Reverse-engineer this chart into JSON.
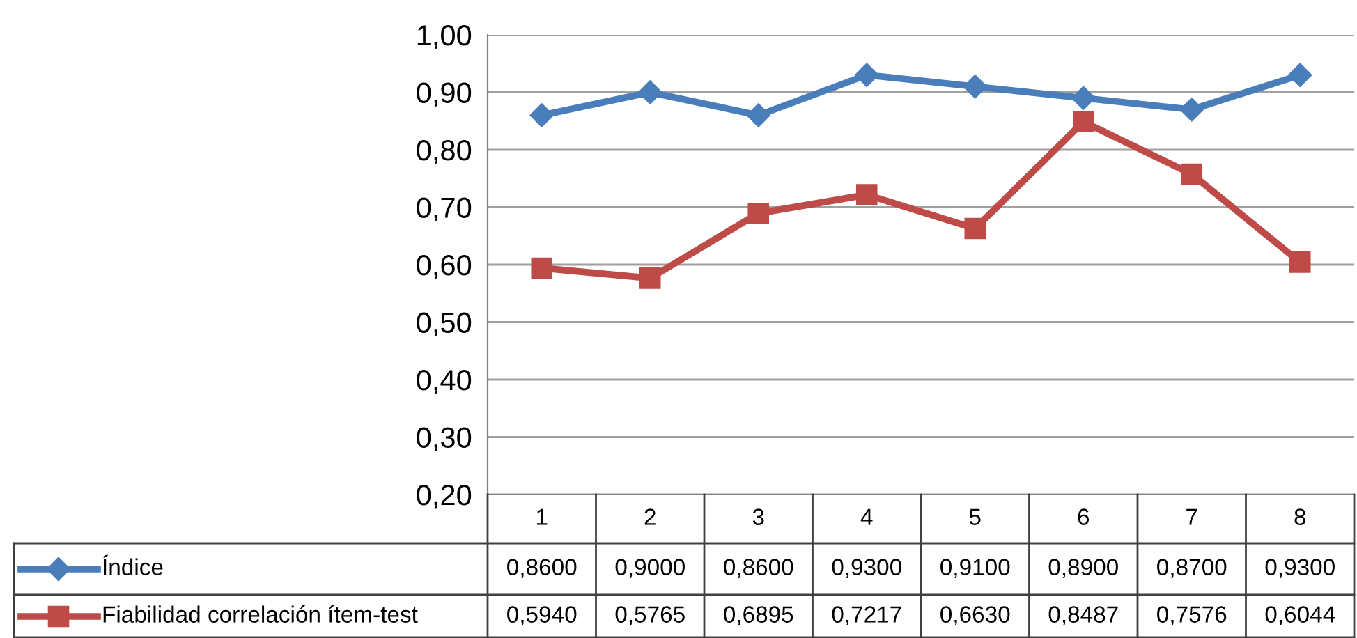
{
  "chart_data": {
    "type": "line",
    "categories": [
      "1",
      "2",
      "3",
      "4",
      "5",
      "6",
      "7",
      "8"
    ],
    "series": [
      {
        "name": "Índice",
        "color": "#4a7ebb",
        "marker": "diamond",
        "values": [
          0.86,
          0.9,
          0.86,
          0.93,
          0.91,
          0.89,
          0.87,
          0.93
        ],
        "value_labels": [
          "0,8600",
          "0,9000",
          "0,8600",
          "0,9300",
          "0,9100",
          "0,8900",
          "0,8700",
          "0,9300"
        ]
      },
      {
        "name": "Fiabilidad correlación ítem-test",
        "color": "#be4b48",
        "marker": "square",
        "values": [
          0.594,
          0.5765,
          0.6895,
          0.7217,
          0.663,
          0.8487,
          0.7576,
          0.6044
        ],
        "value_labels": [
          "0,5940",
          "0,5765",
          "0,6895",
          "0,7217",
          "0,6630",
          "0,8487",
          "0,7576",
          "0,6044"
        ]
      }
    ],
    "ylim": [
      0.2,
      1.0
    ],
    "yticks": [
      {
        "value": 0.2,
        "label": "0,20"
      },
      {
        "value": 0.3,
        "label": "0,30"
      },
      {
        "value": 0.4,
        "label": "0,40"
      },
      {
        "value": 0.5,
        "label": "0,50"
      },
      {
        "value": 0.6,
        "label": "0,60"
      },
      {
        "value": 0.7,
        "label": "0,70"
      },
      {
        "value": 0.8,
        "label": "0,80"
      },
      {
        "value": 0.9,
        "label": "0,90"
      },
      {
        "value": 1.0,
        "label": "1,00"
      }
    ],
    "grid": "y",
    "legend": "bottom",
    "line_style": "solid"
  }
}
